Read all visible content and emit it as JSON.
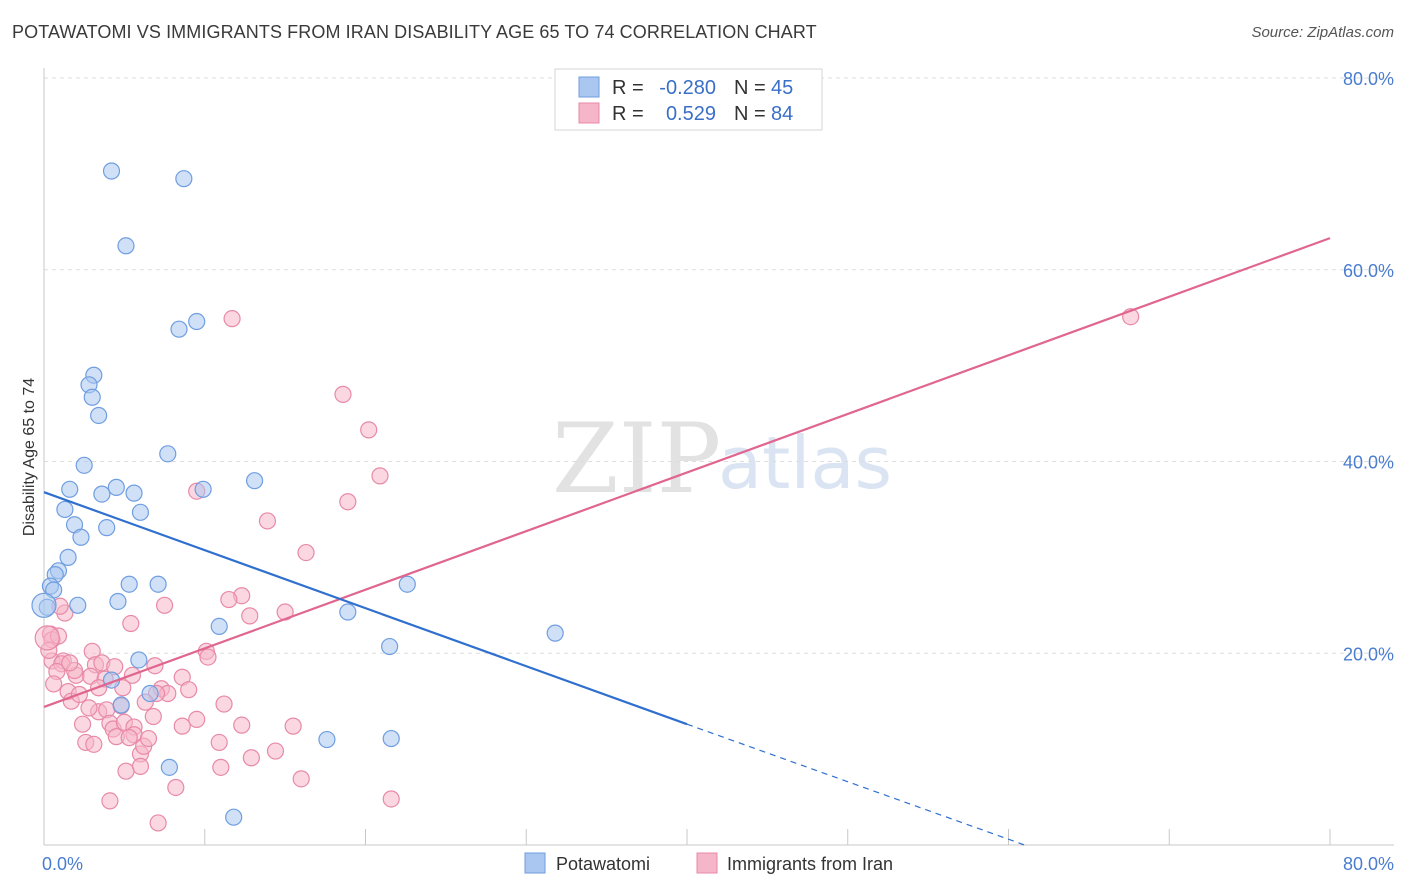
{
  "header": {
    "title": "POTAWATOMI VS IMMIGRANTS FROM IRAN DISABILITY AGE 65 TO 74 CORRELATION CHART",
    "source": "Source: ZipAtlas.com"
  },
  "watermark": {
    "zip": "ZIP",
    "atlas": "atlas"
  },
  "colors": {
    "blue_fill": "#a9c7f0",
    "blue_stroke": "#6f9ee0",
    "blue_line": "#2f6fce",
    "pink_fill": "#f6b6c9",
    "pink_stroke": "#e88aa7",
    "pink_line": "#e0668f",
    "grid": "#dddddd",
    "tick": "#4a7dd0"
  },
  "legend_top": {
    "rows": [
      {
        "r_label": "R =",
        "r_value": "-0.280",
        "n_label": "N =",
        "n_value": "45"
      },
      {
        "r_label": "R =",
        "r_value": "0.529",
        "n_label": "N =",
        "n_value": "84"
      }
    ]
  },
  "legend_bottom": {
    "items": [
      "Potawatomi",
      "Immigrants from Iran"
    ]
  },
  "chart_data": {
    "type": "scatter",
    "title": "POTAWATOMI VS IMMIGRANTS FROM IRAN DISABILITY AGE 65 TO 74 CORRELATION CHART",
    "xlabel": "",
    "ylabel": "Disability Age 65 to 74",
    "xlim": [
      0,
      80
    ],
    "ylim": [
      0,
      80
    ],
    "x_tick_labels": [
      "0.0%",
      "80.0%"
    ],
    "y_ticks": [
      20,
      40,
      60,
      80
    ],
    "y_tick_labels": [
      "20.0%",
      "40.0%",
      "60.0%",
      "80.0%"
    ],
    "grid": true,
    "series": [
      {
        "name": "Potawatomi",
        "R": -0.28,
        "N": 45,
        "trend": {
          "x0": 0,
          "y0": 36.8,
          "x1": 40,
          "y1": 12.6,
          "dash_to_x": 61,
          "dash_to_y": 0
        },
        "points": [
          [
            4.2,
            70.3
          ],
          [
            8.7,
            69.5
          ],
          [
            5.1,
            62.5
          ],
          [
            9.5,
            54.6
          ],
          [
            8.4,
            53.8
          ],
          [
            3.1,
            49.0
          ],
          [
            2.8,
            48.0
          ],
          [
            3.0,
            46.7
          ],
          [
            3.4,
            44.8
          ],
          [
            7.7,
            40.8
          ],
          [
            2.5,
            39.6
          ],
          [
            13.1,
            38.0
          ],
          [
            1.6,
            37.1
          ],
          [
            4.5,
            37.3
          ],
          [
            9.9,
            37.1
          ],
          [
            3.6,
            36.6
          ],
          [
            5.6,
            36.7
          ],
          [
            6.0,
            34.7
          ],
          [
            1.3,
            35.0
          ],
          [
            1.9,
            33.4
          ],
          [
            3.9,
            33.1
          ],
          [
            2.3,
            32.1
          ],
          [
            1.5,
            30.0
          ],
          [
            0.9,
            28.6
          ],
          [
            0.7,
            28.2
          ],
          [
            0.4,
            27.0
          ],
          [
            0.6,
            26.6
          ],
          [
            5.3,
            27.2
          ],
          [
            7.1,
            27.2
          ],
          [
            22.6,
            27.2
          ],
          [
            0.2,
            24.8
          ],
          [
            2.1,
            25.0
          ],
          [
            4.6,
            25.4
          ],
          [
            18.9,
            24.3
          ],
          [
            10.9,
            22.8
          ],
          [
            31.8,
            22.1
          ],
          [
            21.5,
            20.7
          ],
          [
            5.9,
            19.3
          ],
          [
            4.2,
            17.2
          ],
          [
            6.6,
            15.8
          ],
          [
            4.8,
            14.6
          ],
          [
            17.6,
            11.0
          ],
          [
            21.6,
            11.1
          ],
          [
            7.8,
            8.1
          ],
          [
            11.8,
            2.9
          ]
        ],
        "large_point": [
          0.0,
          25.0
        ]
      },
      {
        "name": "Immigrants from Iran",
        "R": 0.529,
        "N": 84,
        "trend": {
          "x0": 0,
          "y0": 14.4,
          "x1": 80,
          "y1": 63.3
        },
        "points": [
          [
            67.6,
            55.1
          ],
          [
            11.7,
            54.9
          ],
          [
            18.6,
            47.0
          ],
          [
            20.2,
            43.3
          ],
          [
            20.9,
            38.5
          ],
          [
            9.5,
            36.9
          ],
          [
            18.9,
            35.8
          ],
          [
            13.9,
            33.8
          ],
          [
            16.3,
            30.5
          ],
          [
            12.3,
            26.0
          ],
          [
            7.5,
            25.0
          ],
          [
            11.5,
            25.6
          ],
          [
            15.0,
            24.3
          ],
          [
            12.8,
            23.9
          ],
          [
            1.3,
            24.2
          ],
          [
            5.4,
            23.1
          ],
          [
            0.4,
            22.0
          ],
          [
            0.5,
            21.4
          ],
          [
            3.0,
            20.2
          ],
          [
            10.1,
            20.2
          ],
          [
            10.2,
            19.6
          ],
          [
            0.5,
            19.2
          ],
          [
            1.2,
            19.2
          ],
          [
            1.1,
            18.9
          ],
          [
            3.2,
            18.8
          ],
          [
            6.9,
            18.7
          ],
          [
            0.8,
            18.1
          ],
          [
            2.0,
            17.7
          ],
          [
            2.9,
            17.6
          ],
          [
            3.8,
            17.3
          ],
          [
            5.5,
            17.7
          ],
          [
            8.6,
            17.5
          ],
          [
            1.5,
            16.0
          ],
          [
            3.4,
            16.4
          ],
          [
            4.9,
            16.4
          ],
          [
            7.3,
            16.3
          ],
          [
            7.7,
            15.8
          ],
          [
            1.7,
            15.0
          ],
          [
            2.2,
            15.7
          ],
          [
            4.8,
            14.5
          ],
          [
            6.8,
            13.4
          ],
          [
            9.5,
            13.1
          ],
          [
            11.2,
            14.7
          ],
          [
            3.4,
            13.9
          ],
          [
            3.9,
            14.1
          ],
          [
            4.1,
            12.7
          ],
          [
            4.3,
            12.1
          ],
          [
            5.0,
            12.8
          ],
          [
            5.6,
            12.3
          ],
          [
            5.6,
            11.5
          ],
          [
            8.6,
            12.4
          ],
          [
            12.3,
            12.5
          ],
          [
            15.5,
            12.4
          ],
          [
            2.6,
            10.7
          ],
          [
            4.5,
            11.3
          ],
          [
            5.3,
            11.2
          ],
          [
            6.0,
            9.5
          ],
          [
            6.2,
            10.3
          ],
          [
            10.9,
            10.7
          ],
          [
            12.9,
            9.1
          ],
          [
            16.0,
            6.9
          ],
          [
            11.0,
            8.1
          ],
          [
            6.0,
            8.2
          ],
          [
            4.1,
            4.6
          ],
          [
            7.1,
            2.3
          ],
          [
            21.6,
            4.8
          ],
          [
            6.5,
            11.1
          ],
          [
            2.8,
            14.3
          ],
          [
            1.9,
            18.2
          ],
          [
            3.6,
            19.0
          ],
          [
            7.0,
            15.8
          ],
          [
            0.3,
            20.3
          ],
          [
            2.4,
            12.6
          ],
          [
            5.1,
            7.7
          ],
          [
            9.0,
            16.2
          ],
          [
            0.9,
            21.8
          ],
          [
            1.6,
            19.0
          ],
          [
            14.4,
            9.8
          ],
          [
            0.6,
            16.8
          ],
          [
            8.2,
            6.0
          ],
          [
            4.4,
            18.6
          ],
          [
            6.3,
            14.9
          ],
          [
            3.1,
            10.5
          ],
          [
            1.0,
            24.9
          ]
        ],
        "large_point": [
          0.2,
          21.6
        ]
      }
    ]
  }
}
